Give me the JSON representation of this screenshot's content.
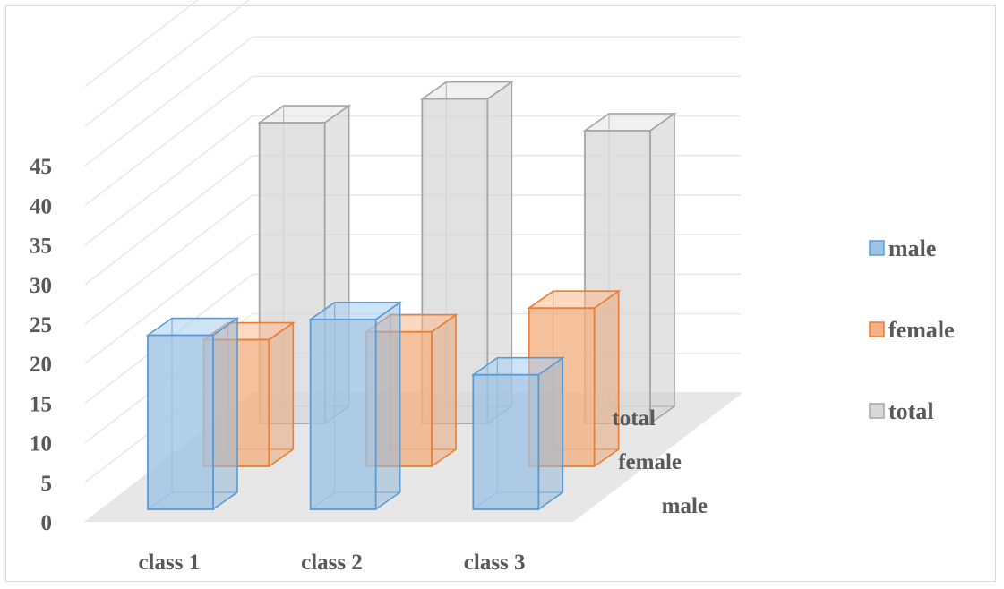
{
  "chart_data": {
    "type": "bar",
    "subtype": "3d-column",
    "title": "",
    "xlabel": "",
    "ylabel": "",
    "categories": [
      "class 1",
      "class 2",
      "class 3"
    ],
    "series": [
      {
        "name": "male",
        "values": [
          22,
          24,
          17
        ],
        "color": "#9dc3e6",
        "edge": "#5b9bd5"
      },
      {
        "name": "female",
        "values": [
          16,
          17,
          20
        ],
        "color": "#f4b183",
        "edge": "#ed7d31"
      },
      {
        "name": "total",
        "values": [
          38,
          41,
          37
        ],
        "color": "#d9d9d9",
        "edge": "#a5a5a5"
      }
    ],
    "y_ticks": [
      "0",
      "5",
      "10",
      "15",
      "20",
      "25",
      "30",
      "35",
      "40",
      "45"
    ],
    "ylim": [
      0,
      45
    ],
    "grid": true,
    "legend": "right"
  }
}
